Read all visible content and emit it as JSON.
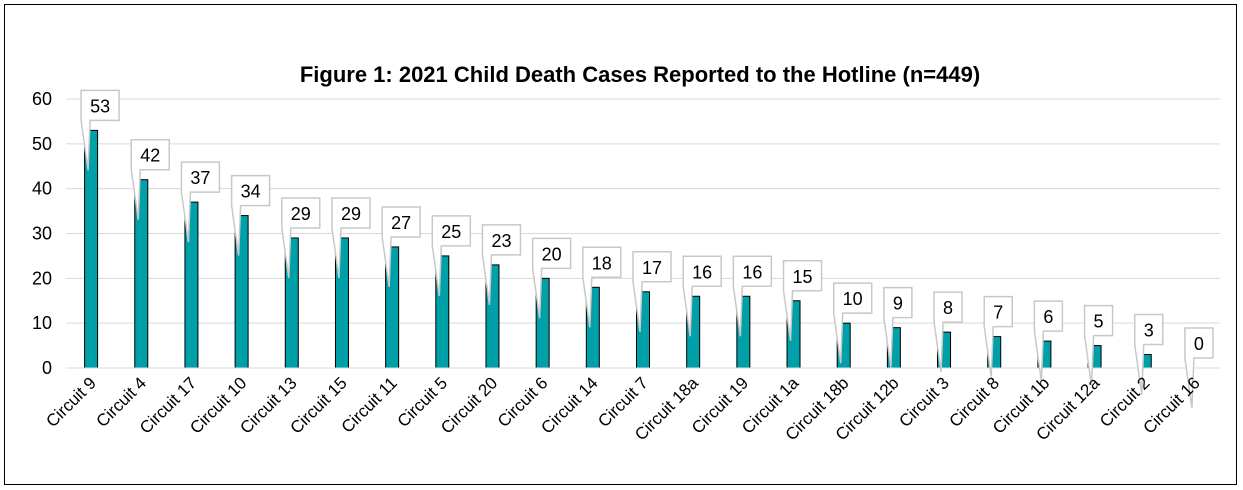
{
  "chart_data": {
    "type": "bar",
    "title": "Figure 1: 2021 Child Death Cases Reported to the Hotline (n=449)",
    "categories": [
      "Circuit 9",
      "Circuit 4",
      "Circuit 17",
      "Circuit 10",
      "Circuit 13",
      "Circuit 15",
      "Circuit 11",
      "Circuit 5",
      "Circuit 20",
      "Circuit 6",
      "Circuit 14",
      "Circuit 7",
      "Circuit 18a",
      "Circuit 19",
      "Circuit 1a",
      "Circuit 18b",
      "Circuit 12b",
      "Circuit 3",
      "Circuit 8",
      "Circuit 1b",
      "Circuit 12a",
      "Circuit 2",
      "Circuit 16"
    ],
    "values": [
      53,
      42,
      37,
      34,
      29,
      29,
      27,
      25,
      23,
      20,
      18,
      17,
      16,
      16,
      15,
      10,
      9,
      8,
      7,
      6,
      5,
      3,
      0
    ],
    "ylim": [
      0,
      60
    ],
    "yticks": [
      0,
      10,
      20,
      30,
      40,
      50,
      60
    ],
    "xlabel": "",
    "ylabel": "",
    "grid": true,
    "bar_color": "#00A0A8",
    "data_labels": true
  }
}
